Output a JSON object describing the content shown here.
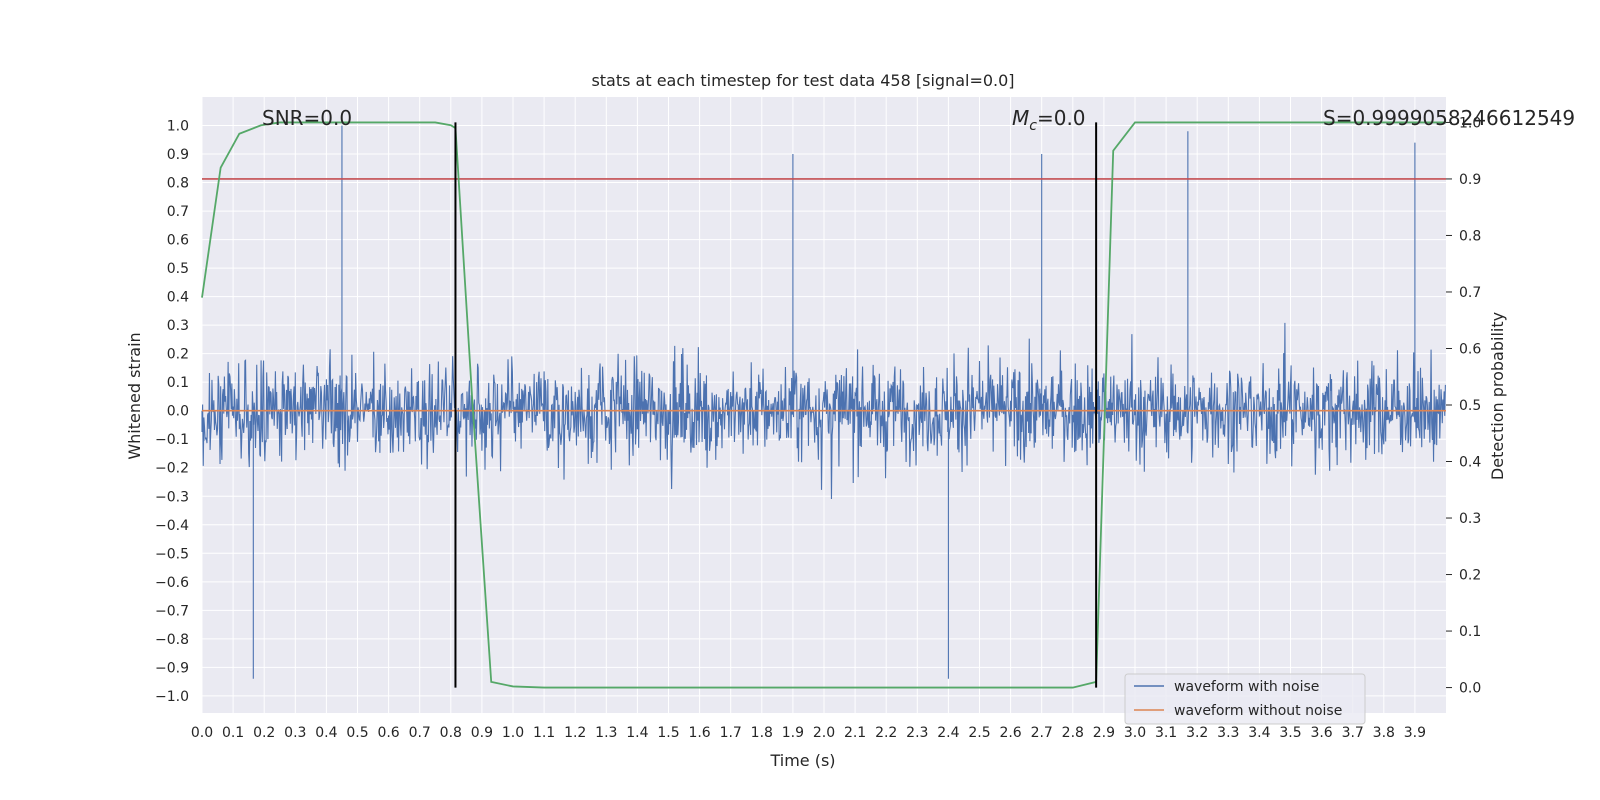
{
  "chart_data": {
    "type": "line",
    "title": "stats at each timestep for test data 458 [signal=0.0]",
    "xlabel": "Time (s)",
    "ylabel_left": "Whitened strain",
    "ylabel_right": "Detection probability",
    "xlim": [
      0.0,
      4.0
    ],
    "ylim_left": [
      -1.06,
      1.1
    ],
    "ylim_right": [
      -0.045,
      1.045
    ],
    "x_ticks": [
      "0.0",
      "0.1",
      "0.2",
      "0.3",
      "0.4",
      "0.5",
      "0.6",
      "0.7",
      "0.8",
      "0.9",
      "1.0",
      "1.1",
      "1.2",
      "1.3",
      "1.4",
      "1.5",
      "1.6",
      "1.7",
      "1.8",
      "1.9",
      "2.0",
      "2.1",
      "2.2",
      "2.3",
      "2.4",
      "2.5",
      "2.6",
      "2.7",
      "2.8",
      "2.9",
      "3.0",
      "3.1",
      "3.2",
      "3.3",
      "3.4",
      "3.5",
      "3.6",
      "3.7",
      "3.8",
      "3.9"
    ],
    "y_ticks_left": [
      "1.0",
      "0.9",
      "0.8",
      "0.7",
      "0.6",
      "0.5",
      "0.4",
      "0.3",
      "0.2",
      "0.1",
      "0.0",
      "-0.1",
      "-0.2",
      "-0.3",
      "-0.4",
      "-0.5",
      "-0.6",
      "-0.7",
      "-0.8",
      "-0.9",
      "-1.0"
    ],
    "y_ticks_right": [
      "1.0",
      "0.9",
      "0.8",
      "0.7",
      "0.6",
      "0.5",
      "0.4",
      "0.3",
      "0.2",
      "0.1",
      "0.0"
    ],
    "grid": true,
    "legend_position": "bottom-right",
    "annotations": {
      "snr": "SNR=0.0",
      "mc_symbol": "M",
      "mc_sub": "c",
      "mc_value": "=0.0",
      "s": "S=0.9999058246612549"
    },
    "threshold_level": 0.9,
    "vertical_markers_x": [
      0.815,
      2.875
    ],
    "series": [
      {
        "name": "waveform with noise",
        "color": "#4c72b0",
        "kind": "noise",
        "amplitude_range": [
          -0.94,
          1.0
        ]
      },
      {
        "name": "waveform without noise",
        "color": "#dd8452",
        "kind": "flat",
        "value": 0.0
      },
      {
        "color": "#55a868",
        "axis": "right",
        "x": [
          0.0,
          0.06,
          0.12,
          0.19,
          0.25,
          0.45,
          0.75,
          0.8,
          0.815,
          0.87,
          0.93,
          1.0,
          1.1,
          2.0,
          2.8,
          2.875,
          2.93,
          3.0,
          3.9,
          4.0
        ],
        "y": [
          0.69,
          0.92,
          0.98,
          0.995,
          1.0,
          1.0,
          1.0,
          0.995,
          0.99,
          0.5,
          0.01,
          0.002,
          0.0,
          0.0,
          0.0,
          0.01,
          0.95,
          1.0,
          1.0,
          1.0
        ]
      }
    ],
    "colors": {
      "background": "#eaeaf2",
      "grid": "#ffffff",
      "threshold": "#c44e52",
      "marker": "#000000"
    }
  }
}
